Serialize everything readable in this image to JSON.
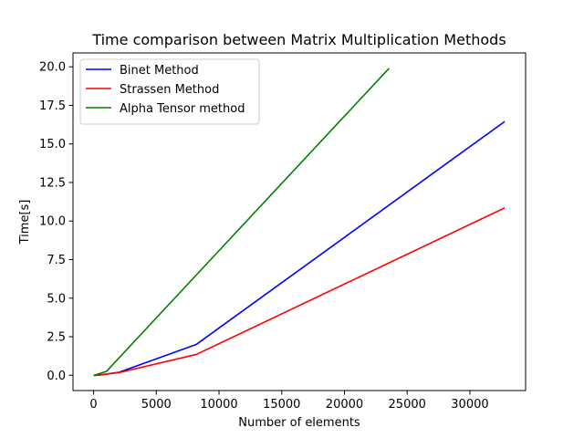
{
  "chart_data": {
    "type": "line",
    "title": "Time comparison between Matrix Multiplication Methods",
    "xlabel": "Number of elements",
    "ylabel": "Time[s]",
    "xlim": [
      -1640,
      34440
    ],
    "ylim": [
      -0.99,
      20.9
    ],
    "xticks": [
      0,
      5000,
      10000,
      15000,
      20000,
      25000,
      30000
    ],
    "yticks": [
      0.0,
      2.5,
      5.0,
      7.5,
      10.0,
      12.5,
      15.0,
      17.5,
      20.0
    ],
    "xtick_labels": [
      "0",
      "5000",
      "10000",
      "15000",
      "20000",
      "25000",
      "30000"
    ],
    "ytick_labels": [
      "0.0",
      "2.5",
      "5.0",
      "7.5",
      "10.0",
      "12.5",
      "15.0",
      "17.5",
      "20.0"
    ],
    "grid": false,
    "legend_position": "top-left",
    "series": [
      {
        "name": "Binet Method",
        "color": "#0000ff",
        "x": [
          0,
          128,
          512,
          2048,
          8192,
          32768
        ],
        "y": [
          0.0,
          0.0,
          0.02,
          0.2,
          2.0,
          16.45
        ]
      },
      {
        "name": "Strassen Method",
        "color": "#ff0000",
        "x": [
          0,
          128,
          512,
          2048,
          8192,
          32768
        ],
        "y": [
          0.0,
          0.0,
          0.02,
          0.18,
          1.35,
          10.85
        ]
      },
      {
        "name": "Alpha Tensor method",
        "color": "#008000",
        "x": [
          0,
          128,
          1024,
          23552
        ],
        "y": [
          0.0,
          0.02,
          0.25,
          19.9
        ]
      }
    ]
  }
}
